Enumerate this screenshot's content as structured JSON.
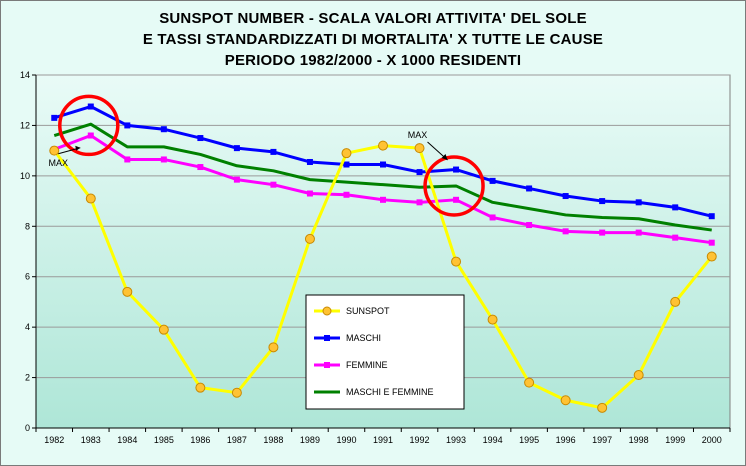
{
  "chart_data": {
    "type": "line",
    "title": [
      "SUNSPOT NUMBER - SCALA VALORI ATTIVITA' DEL SOLE",
      "E TASSI STANDARDIZZATI DI MORTALITA' X TUTTE LE CAUSE",
      "PERIODO 1982/2000 - X 1000 RESIDENTI"
    ],
    "xlabel": "",
    "ylabel": "",
    "categories": [
      "1982",
      "1983",
      "1984",
      "1985",
      "1986",
      "1987",
      "1988",
      "1989",
      "1990",
      "1991",
      "1992",
      "1993",
      "1994",
      "1995",
      "1996",
      "1997",
      "1998",
      "1999",
      "2000"
    ],
    "ylim": [
      0,
      14
    ],
    "yticks": [
      0,
      2,
      4,
      6,
      8,
      10,
      12,
      14
    ],
    "grid": true,
    "legend_position": "center-bottom",
    "series": [
      {
        "name": "SUNSPOT",
        "color": "#ffff00",
        "marker": "circle",
        "values": [
          11.0,
          9.1,
          5.4,
          3.9,
          1.6,
          1.4,
          3.2,
          7.5,
          10.9,
          11.2,
          11.1,
          6.6,
          4.3,
          1.8,
          1.1,
          0.8,
          2.1,
          5.0,
          6.8
        ]
      },
      {
        "name": "MASCHI",
        "color": "#0000ff",
        "marker": "square",
        "values": [
          12.3,
          12.75,
          12.0,
          11.85,
          11.5,
          11.1,
          10.95,
          10.55,
          10.45,
          10.45,
          10.15,
          10.25,
          9.8,
          9.5,
          9.2,
          9.0,
          8.95,
          8.75,
          8.4
        ]
      },
      {
        "name": "FEMMINE",
        "color": "#ff00ff",
        "marker": "square",
        "values": [
          11.05,
          11.6,
          10.65,
          10.65,
          10.35,
          9.85,
          9.65,
          9.3,
          9.25,
          9.05,
          8.95,
          9.05,
          8.35,
          8.05,
          7.8,
          7.75,
          7.75,
          7.55,
          7.35
        ]
      },
      {
        "name": "MASCHI E FEMMINE",
        "color": "#008000",
        "marker": "none",
        "values": [
          11.6,
          12.05,
          11.15,
          11.15,
          10.85,
          10.4,
          10.2,
          9.85,
          9.75,
          9.65,
          9.55,
          9.6,
          8.95,
          8.7,
          8.45,
          8.35,
          8.3,
          8.05,
          7.85
        ]
      }
    ],
    "annotations": [
      {
        "text": "MAX",
        "x": "1982",
        "y": 10.4
      },
      {
        "text": "MAX",
        "x": "1992",
        "y": 11.5
      }
    ],
    "highlight_circles": [
      {
        "x": "1983",
        "y": 12.0
      },
      {
        "x": "1993",
        "y": 9.6
      }
    ],
    "highlight_color": "#ff0000"
  }
}
